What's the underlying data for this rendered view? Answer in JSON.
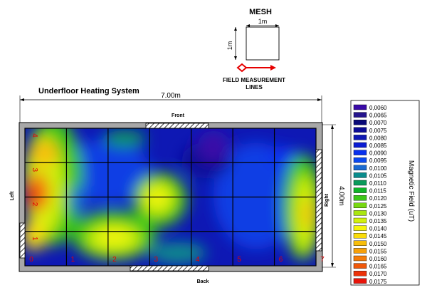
{
  "title": "Underfloor Heating System",
  "mesh": {
    "title": "MESH",
    "width_label": "1m",
    "height_label": "1m",
    "lines_label_1": "FIELD MEASUREMENT",
    "lines_label_2": "LINES"
  },
  "room": {
    "width_label": "7.00m",
    "height_label": "4.00m",
    "front_label": "Front",
    "back_label": "Back",
    "left_label": "Left",
    "right_label": "Right",
    "x_labels": [
      "0",
      "1",
      "2",
      "3",
      "4",
      "5",
      "6",
      "7"
    ],
    "y_labels": [
      "1",
      "2",
      "3",
      "4"
    ]
  },
  "legend": {
    "title": "Magnetic Field (uT)",
    "items": [
      {
        "label": "0,0060",
        "color": "#3a0aa8"
      },
      {
        "label": "0,0065",
        "color": "#24148c"
      },
      {
        "label": "0,0070",
        "color": "#0a0a78"
      },
      {
        "label": "0,0075",
        "color": "#0c0c96"
      },
      {
        "label": "0,0080",
        "color": "#0e18b4"
      },
      {
        "label": "0,0085",
        "color": "#0a1cd2"
      },
      {
        "label": "0,0090",
        "color": "#0830ee"
      },
      {
        "label": "0,0095",
        "color": "#0a48f0"
      },
      {
        "label": "0,0100",
        "color": "#1a6ad2"
      },
      {
        "label": "0,0105",
        "color": "#0a8c8c"
      },
      {
        "label": "0,0110",
        "color": "#0a9a5a"
      },
      {
        "label": "0,0115",
        "color": "#10b428"
      },
      {
        "label": "0,0120",
        "color": "#3cc818"
      },
      {
        "label": "0,0125",
        "color": "#78d812"
      },
      {
        "label": "0,0130",
        "color": "#aae610"
      },
      {
        "label": "0,0135",
        "color": "#d2f00e"
      },
      {
        "label": "0,0140",
        "color": "#f5f50a"
      },
      {
        "label": "0,0145",
        "color": "#fadc0a"
      },
      {
        "label": "0,0150",
        "color": "#f8be0a"
      },
      {
        "label": "0,0155",
        "color": "#f6a00a"
      },
      {
        "label": "0,0160",
        "color": "#f47c0a"
      },
      {
        "label": "0,0165",
        "color": "#f0580a"
      },
      {
        "label": "0,0170",
        "color": "#ec320a"
      },
      {
        "label": "0,0175",
        "color": "#e8140a"
      }
    ]
  }
}
